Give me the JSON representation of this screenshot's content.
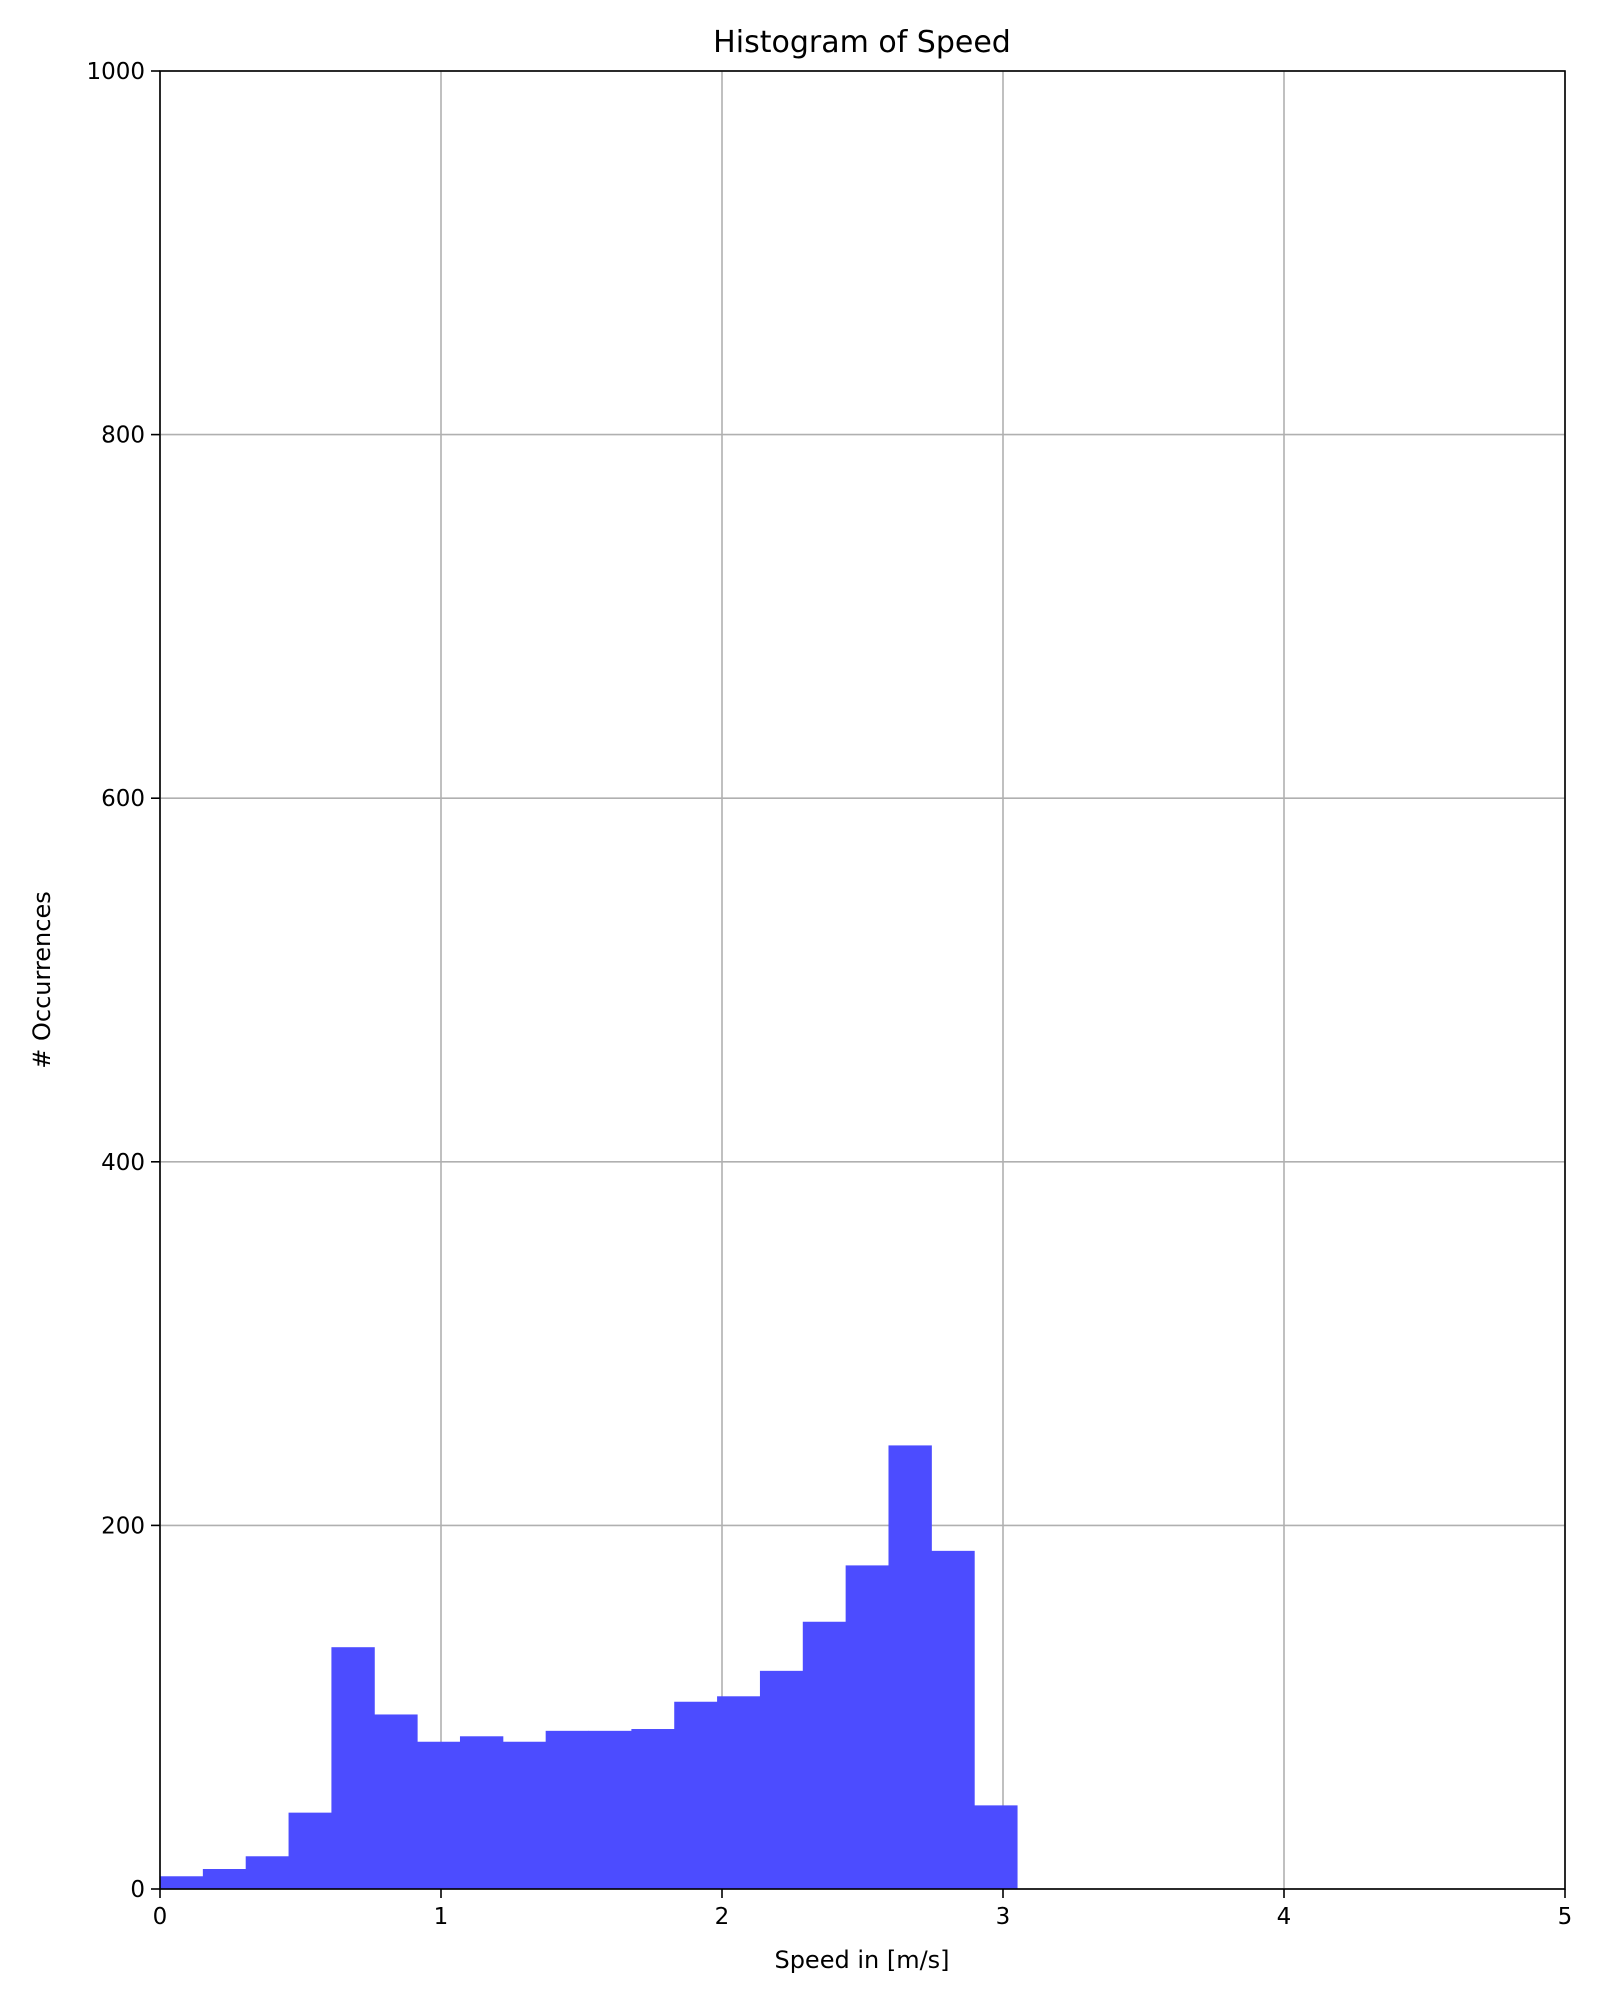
{
  "chart_data": {
    "type": "bar",
    "title": "Histogram of Speed",
    "xlabel": "Speed in [m/s]",
    "ylabel": "# Occurrences",
    "xlim": [
      0,
      5
    ],
    "ylim": [
      0,
      1000
    ],
    "xticks": [
      "0",
      "1",
      "2",
      "3",
      "4",
      "5"
    ],
    "yticks": [
      "0",
      "200",
      "400",
      "600",
      "800",
      "1000"
    ],
    "grid": true,
    "bar_color": "#4c4cff",
    "bin_start": 0.0,
    "bin_width": 0.1525,
    "values": [
      7,
      11,
      18,
      42,
      133,
      96,
      81,
      84,
      81,
      87,
      87,
      88,
      103,
      106,
      120,
      147,
      178,
      244,
      186,
      46
    ]
  }
}
